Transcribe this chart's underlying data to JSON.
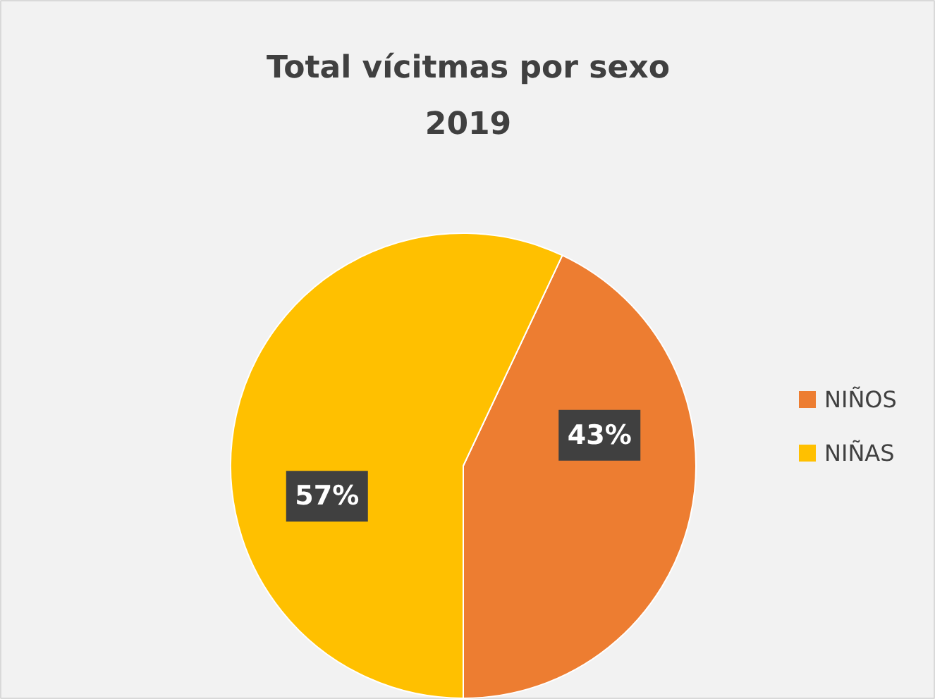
{
  "chart_data": {
    "type": "pie",
    "title": "Total vícitmas por sexo\n2019",
    "categories": [
      "NIÑOS",
      "NIÑAS"
    ],
    "values": [
      43,
      57
    ],
    "colors": [
      "#ed7d31",
      "#ffc000"
    ],
    "value_labels": [
      "43%",
      "57%"
    ],
    "legend": "right"
  }
}
